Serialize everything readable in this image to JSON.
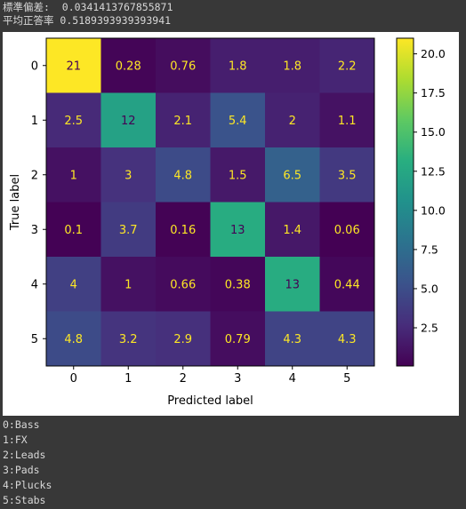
{
  "output": {
    "std_line": "標準偏差:  0.0341413767855871",
    "mean_line": "平均正答率 0.5189393939393941"
  },
  "chart_data": {
    "type": "heatmap",
    "title": "",
    "xlabel": "Predicted label",
    "ylabel": "True label",
    "x_ticks": [
      "0",
      "1",
      "2",
      "3",
      "4",
      "5"
    ],
    "y_ticks": [
      "0",
      "1",
      "2",
      "3",
      "4",
      "5"
    ],
    "values": [
      [
        21,
        0.28,
        0.76,
        1.8,
        1.8,
        2.2
      ],
      [
        2.5,
        12,
        2.1,
        5.4,
        2,
        1.1
      ],
      [
        1,
        3,
        4.8,
        1.5,
        6.5,
        3.5
      ],
      [
        0.1,
        3.7,
        0.16,
        13,
        1.4,
        0.06
      ],
      [
        4,
        1,
        0.66,
        0.38,
        13,
        0.44
      ],
      [
        4.8,
        3.2,
        2.9,
        0.79,
        4.3,
        4.3
      ]
    ],
    "cell_labels": [
      [
        "21",
        "0.28",
        "0.76",
        "1.8",
        "1.8",
        "2.2"
      ],
      [
        "2.5",
        "12",
        "2.1",
        "5.4",
        "2",
        "1.1"
      ],
      [
        "1",
        "3",
        "4.8",
        "1.5",
        "6.5",
        "3.5"
      ],
      [
        "0.1",
        "3.7",
        "0.16",
        "13",
        "1.4",
        "0.06"
      ],
      [
        "4",
        "1",
        "0.66",
        "0.38",
        "13",
        "0.44"
      ],
      [
        "4.8",
        "3.2",
        "2.9",
        "0.79",
        "4.3",
        "4.3"
      ]
    ],
    "colormap": "viridis",
    "vmin": 0.06,
    "vmax": 21,
    "colorbar_ticks": [
      "2.5",
      "5.0",
      "7.5",
      "10.0",
      "12.5",
      "15.0",
      "17.5",
      "20.0"
    ],
    "colorbar_tick_values": [
      2.5,
      5.0,
      7.5,
      10.0,
      12.5,
      15.0,
      17.5,
      20.0
    ]
  },
  "class_labels": [
    "0:Bass",
    "1:FX",
    "2:Leads",
    "3:Pads",
    "4:Plucks",
    "5:Stabs"
  ]
}
